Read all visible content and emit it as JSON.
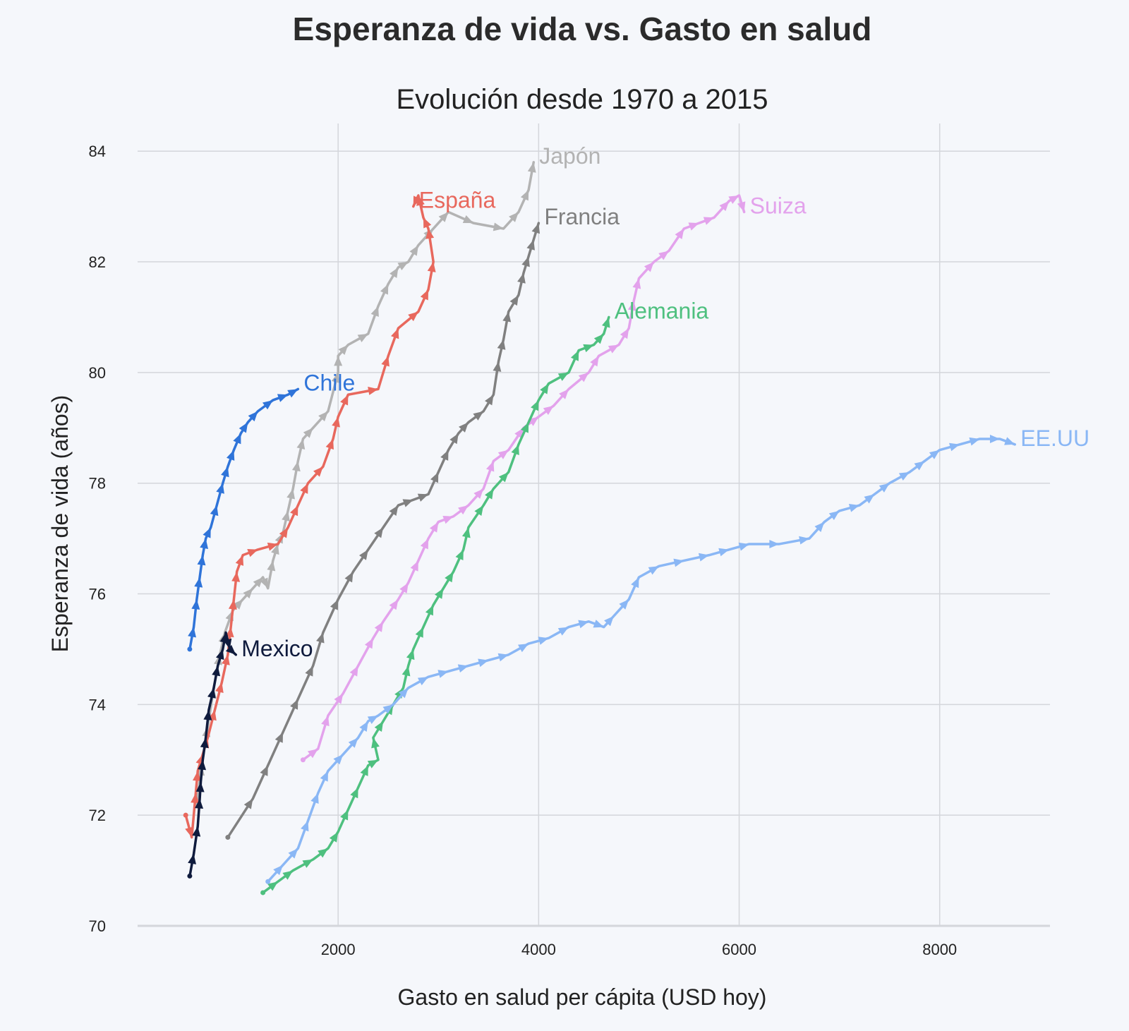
{
  "chart_data": {
    "type": "line",
    "title": "Esperanza de vida vs. Gasto en salud",
    "subtitle": "Evolución desde 1970 a 2015",
    "xlabel": "Gasto en salud per cápita (USD hoy)",
    "ylabel": "Esperanza de vida (años)",
    "xlim": [
      0,
      9100
    ],
    "ylim": [
      70,
      84.5
    ],
    "xticks": [
      2000,
      4000,
      6000,
      8000
    ],
    "yticks": [
      70,
      72,
      74,
      76,
      78,
      80,
      82,
      84
    ],
    "grid": true,
    "series": [
      {
        "name": "Japón",
        "color": "#b3b3b3",
        "points": [
          [
            590,
            72.2
          ],
          [
            640,
            72.9
          ],
          [
            700,
            73.6
          ],
          [
            760,
            74.3
          ],
          [
            820,
            74.9
          ],
          [
            870,
            75.3
          ],
          [
            950,
            75.7
          ],
          [
            1050,
            75.9
          ],
          [
            1150,
            76.1
          ],
          [
            1250,
            76.3
          ],
          [
            1300,
            76.1
          ],
          [
            1350,
            76.6
          ],
          [
            1400,
            76.9
          ],
          [
            1450,
            77.1
          ],
          [
            1500,
            77.5
          ],
          [
            1550,
            77.9
          ],
          [
            1600,
            78.4
          ],
          [
            1650,
            78.8
          ],
          [
            1750,
            79.0
          ],
          [
            1900,
            79.3
          ],
          [
            2000,
            80.0
          ],
          [
            2000,
            80.3
          ],
          [
            2100,
            80.5
          ],
          [
            2300,
            80.7
          ],
          [
            2400,
            81.2
          ],
          [
            2500,
            81.6
          ],
          [
            2600,
            81.9
          ],
          [
            2700,
            82.0
          ],
          [
            2800,
            82.3
          ],
          [
            2950,
            82.6
          ],
          [
            3100,
            82.9
          ],
          [
            3350,
            82.7
          ],
          [
            3650,
            82.6
          ],
          [
            3800,
            82.9
          ],
          [
            3900,
            83.3
          ],
          [
            3950,
            83.8
          ]
        ],
        "label": "Japón"
      },
      {
        "name": "España",
        "color": "#e8685d",
        "points": [
          [
            480,
            72.0
          ],
          [
            540,
            71.6
          ],
          [
            580,
            72.4
          ],
          [
            600,
            72.8
          ],
          [
            650,
            73.1
          ],
          [
            700,
            73.4
          ],
          [
            770,
            73.9
          ],
          [
            840,
            74.4
          ],
          [
            900,
            74.9
          ],
          [
            930,
            75.4
          ],
          [
            960,
            75.9
          ],
          [
            990,
            76.4
          ],
          [
            1050,
            76.7
          ],
          [
            1200,
            76.8
          ],
          [
            1400,
            76.9
          ],
          [
            1500,
            77.2
          ],
          [
            1600,
            77.6
          ],
          [
            1700,
            78.0
          ],
          [
            1850,
            78.3
          ],
          [
            1950,
            78.8
          ],
          [
            2000,
            79.2
          ],
          [
            2100,
            79.6
          ],
          [
            2400,
            79.7
          ],
          [
            2500,
            80.3
          ],
          [
            2600,
            80.8
          ],
          [
            2800,
            81.1
          ],
          [
            2900,
            81.5
          ],
          [
            2950,
            82.0
          ],
          [
            2900,
            82.6
          ],
          [
            2850,
            82.8
          ],
          [
            2800,
            83.2
          ],
          [
            2750,
            83.0
          ]
        ],
        "label": "España"
      },
      {
        "name": "Francia",
        "color": "#808080",
        "points": [
          [
            900,
            71.6
          ],
          [
            1150,
            72.3
          ],
          [
            1300,
            72.9
          ],
          [
            1450,
            73.5
          ],
          [
            1600,
            74.1
          ],
          [
            1750,
            74.7
          ],
          [
            1850,
            75.3
          ],
          [
            2000,
            75.9
          ],
          [
            2150,
            76.4
          ],
          [
            2300,
            76.8
          ],
          [
            2450,
            77.2
          ],
          [
            2600,
            77.6
          ],
          [
            2750,
            77.7
          ],
          [
            2900,
            77.8
          ],
          [
            3000,
            78.2
          ],
          [
            3100,
            78.6
          ],
          [
            3200,
            78.9
          ],
          [
            3300,
            79.1
          ],
          [
            3450,
            79.3
          ],
          [
            3550,
            79.6
          ],
          [
            3600,
            80.2
          ],
          [
            3650,
            80.6
          ],
          [
            3700,
            81.1
          ],
          [
            3800,
            81.4
          ],
          [
            3850,
            81.8
          ],
          [
            3900,
            82.1
          ],
          [
            3950,
            82.4
          ],
          [
            4000,
            82.7
          ]
        ],
        "label": "Francia"
      },
      {
        "name": "Suiza",
        "color": "#e3a2ec",
        "points": [
          [
            1650,
            73.0
          ],
          [
            1800,
            73.2
          ],
          [
            1900,
            73.8
          ],
          [
            2050,
            74.2
          ],
          [
            2200,
            74.7
          ],
          [
            2350,
            75.2
          ],
          [
            2450,
            75.5
          ],
          [
            2600,
            75.9
          ],
          [
            2700,
            76.2
          ],
          [
            2800,
            76.6
          ],
          [
            2900,
            77.0
          ],
          [
            3000,
            77.3
          ],
          [
            3150,
            77.4
          ],
          [
            3300,
            77.6
          ],
          [
            3450,
            77.9
          ],
          [
            3550,
            78.4
          ],
          [
            3700,
            78.6
          ],
          [
            3850,
            79.0
          ],
          [
            4000,
            79.2
          ],
          [
            4150,
            79.4
          ],
          [
            4300,
            79.7
          ],
          [
            4500,
            80.0
          ],
          [
            4600,
            80.3
          ],
          [
            4800,
            80.5
          ],
          [
            4900,
            80.8
          ],
          [
            4950,
            81.3
          ],
          [
            5000,
            81.7
          ],
          [
            5150,
            82.0
          ],
          [
            5300,
            82.2
          ],
          [
            5450,
            82.6
          ],
          [
            5600,
            82.7
          ],
          [
            5750,
            82.8
          ],
          [
            5900,
            83.1
          ],
          [
            6000,
            83.2
          ],
          [
            6050,
            82.9
          ]
        ],
        "label": "Suiza"
      },
      {
        "name": "Alemania",
        "color": "#4ec07f",
        "points": [
          [
            1250,
            70.6
          ],
          [
            1400,
            70.8
          ],
          [
            1550,
            71.0
          ],
          [
            1750,
            71.2
          ],
          [
            1900,
            71.4
          ],
          [
            2000,
            71.7
          ],
          [
            2100,
            72.1
          ],
          [
            2200,
            72.5
          ],
          [
            2300,
            72.9
          ],
          [
            2400,
            73.0
          ],
          [
            2350,
            73.4
          ],
          [
            2450,
            73.7
          ],
          [
            2550,
            74.0
          ],
          [
            2650,
            74.3
          ],
          [
            2700,
            74.7
          ],
          [
            2750,
            75.0
          ],
          [
            2850,
            75.4
          ],
          [
            2950,
            75.8
          ],
          [
            3050,
            76.1
          ],
          [
            3150,
            76.4
          ],
          [
            3250,
            76.8
          ],
          [
            3300,
            77.2
          ],
          [
            3450,
            77.6
          ],
          [
            3550,
            77.9
          ],
          [
            3700,
            78.2
          ],
          [
            3800,
            78.7
          ],
          [
            3900,
            79.1
          ],
          [
            4000,
            79.5
          ],
          [
            4100,
            79.8
          ],
          [
            4300,
            80.0
          ],
          [
            4400,
            80.4
          ],
          [
            4550,
            80.5
          ],
          [
            4650,
            80.7
          ],
          [
            4700,
            81.0
          ]
        ],
        "label": "Alemania"
      },
      {
        "name": "EE.UU",
        "color": "#8ab7f5",
        "points": [
          [
            1300,
            70.8
          ],
          [
            1450,
            71.1
          ],
          [
            1600,
            71.4
          ],
          [
            1700,
            71.9
          ],
          [
            1800,
            72.4
          ],
          [
            1900,
            72.8
          ],
          [
            2050,
            73.1
          ],
          [
            2200,
            73.4
          ],
          [
            2300,
            73.7
          ],
          [
            2400,
            73.8
          ],
          [
            2550,
            74.0
          ],
          [
            2700,
            74.3
          ],
          [
            2900,
            74.5
          ],
          [
            3100,
            74.6
          ],
          [
            3300,
            74.7
          ],
          [
            3500,
            74.8
          ],
          [
            3700,
            74.9
          ],
          [
            3900,
            75.1
          ],
          [
            4100,
            75.2
          ],
          [
            4300,
            75.4
          ],
          [
            4500,
            75.5
          ],
          [
            4650,
            75.4
          ],
          [
            4750,
            75.6
          ],
          [
            4900,
            75.9
          ],
          [
            5000,
            76.3
          ],
          [
            5200,
            76.5
          ],
          [
            5450,
            76.6
          ],
          [
            5700,
            76.7
          ],
          [
            5900,
            76.8
          ],
          [
            6100,
            76.9
          ],
          [
            6400,
            76.9
          ],
          [
            6700,
            77.0
          ],
          [
            6850,
            77.3
          ],
          [
            7000,
            77.5
          ],
          [
            7200,
            77.6
          ],
          [
            7350,
            77.8
          ],
          [
            7500,
            78.0
          ],
          [
            7700,
            78.2
          ],
          [
            7850,
            78.4
          ],
          [
            8000,
            78.6
          ],
          [
            8200,
            78.7
          ],
          [
            8400,
            78.8
          ],
          [
            8600,
            78.8
          ],
          [
            8750,
            78.7
          ]
        ],
        "label": "EE.UU"
      },
      {
        "name": "Chile",
        "color": "#2f74d9",
        "points": [
          [
            520,
            75.0
          ],
          [
            560,
            75.4
          ],
          [
            590,
            75.9
          ],
          [
            620,
            76.3
          ],
          [
            650,
            76.7
          ],
          [
            680,
            77.0
          ],
          [
            730,
            77.2
          ],
          [
            790,
            77.6
          ],
          [
            850,
            78.0
          ],
          [
            900,
            78.3
          ],
          [
            960,
            78.6
          ],
          [
            1030,
            78.9
          ],
          [
            1100,
            79.1
          ],
          [
            1200,
            79.3
          ],
          [
            1350,
            79.5
          ],
          [
            1500,
            79.6
          ],
          [
            1600,
            79.7
          ]
        ],
        "label": "Chile"
      },
      {
        "name": "Mexico",
        "color": "#0f1b3d",
        "points": [
          [
            520,
            70.9
          ],
          [
            560,
            71.3
          ],
          [
            600,
            71.8
          ],
          [
            620,
            72.3
          ],
          [
            630,
            72.6
          ],
          [
            650,
            73.0
          ],
          [
            680,
            73.4
          ],
          [
            710,
            73.9
          ],
          [
            760,
            74.3
          ],
          [
            800,
            74.7
          ],
          [
            850,
            75.0
          ],
          [
            880,
            75.3
          ],
          [
            920,
            75.0
          ],
          [
            980,
            74.9
          ]
        ],
        "label": "Mexico"
      }
    ]
  }
}
